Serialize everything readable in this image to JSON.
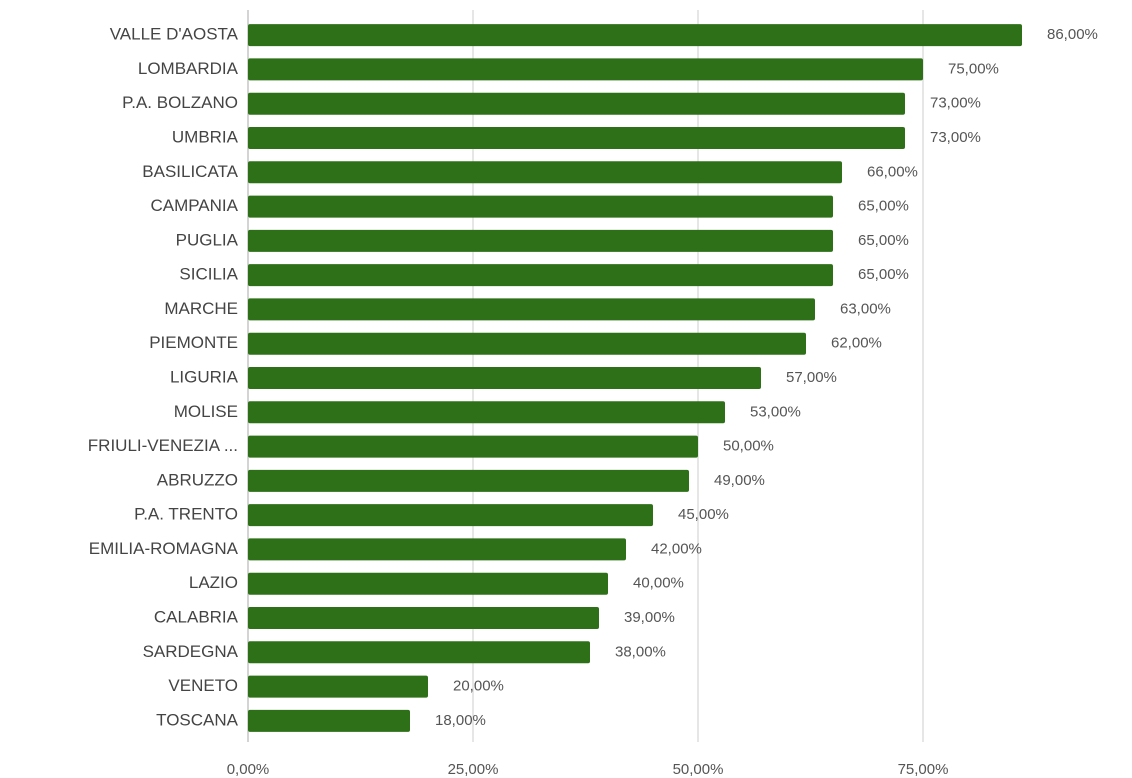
{
  "chart_data": {
    "type": "hbar",
    "color": "#2e7018",
    "categories": [
      "VALLE D'AOSTA",
      "LOMBARDIA",
      "P.A. BOLZANO",
      "UMBRIA",
      "BASILICATA",
      "CAMPANIA",
      "PUGLIA",
      "SICILIA",
      "MARCHE",
      "PIEMONTE",
      "LIGURIA",
      "MOLISE",
      "FRIULI-VENEZIA ...",
      "ABRUZZO",
      "P.A. TRENTO",
      "EMILIA-ROMAGNA",
      "LAZIO",
      "CALABRIA",
      "SARDEGNA",
      "VENETO",
      "TOSCANA"
    ],
    "values": [
      86,
      75,
      73,
      73,
      66,
      65,
      65,
      65,
      63,
      62,
      57,
      53,
      50,
      49,
      45,
      42,
      40,
      39,
      38,
      20,
      18
    ],
    "value_labels": [
      "86,00%",
      "75,00%",
      "73,00%",
      "73,00%",
      "66,00%",
      "65,00%",
      "65,00%",
      "65,00%",
      "63,00%",
      "62,00%",
      "57,00%",
      "53,00%",
      "50,00%",
      "49,00%",
      "45,00%",
      "42,00%",
      "40,00%",
      "39,00%",
      "38,00%",
      "20,00%",
      "18,00%"
    ],
    "xlim": [
      0,
      98
    ],
    "xticks": [
      {
        "value": 0,
        "label": "0,00%"
      },
      {
        "value": 25,
        "label": "25,00%"
      },
      {
        "value": 50,
        "label": "50,00%"
      },
      {
        "value": 75,
        "label": "75,00%"
      }
    ],
    "grid": true
  }
}
